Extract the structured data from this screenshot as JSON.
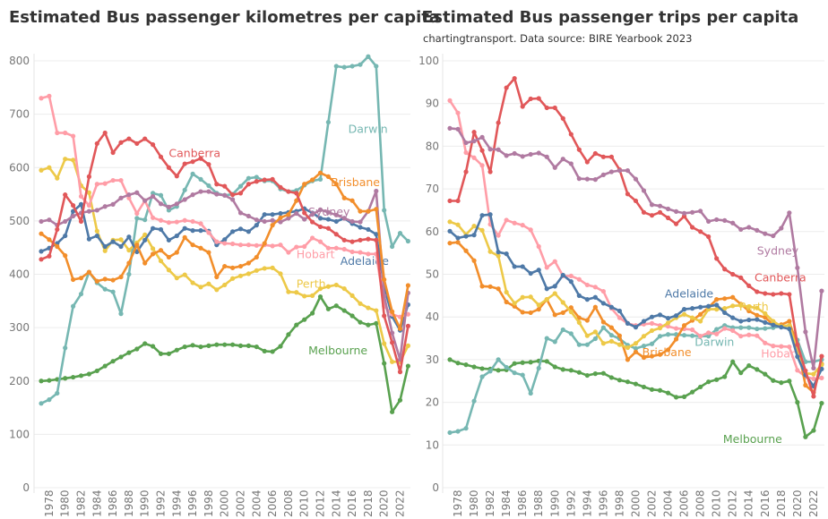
{
  "chart_data": [
    {
      "type": "line",
      "title": "Estimated Bus passenger kilometres per capita",
      "subtitle": "",
      "xlabel": "",
      "ylabel": "",
      "ylim": [
        0,
        800
      ],
      "yticks": [
        0,
        100,
        200,
        300,
        400,
        500,
        600,
        700,
        800
      ],
      "xticks": [
        1978,
        1980,
        1982,
        1984,
        1986,
        1988,
        1990,
        1992,
        1994,
        1996,
        1998,
        2000,
        2002,
        2004,
        2006,
        2008,
        2010,
        2012,
        2014,
        2016,
        2018,
        2020,
        2022
      ],
      "grid": true,
      "legend": "inline labels",
      "x": [
        1977,
        1978,
        1979,
        1980,
        1981,
        1982,
        1983,
        1984,
        1985,
        1986,
        1987,
        1988,
        1989,
        1990,
        1991,
        1992,
        1993,
        1994,
        1995,
        1996,
        1997,
        1998,
        1999,
        2000,
        2001,
        2002,
        2003,
        2004,
        2005,
        2006,
        2007,
        2008,
        2009,
        2010,
        2011,
        2012,
        2013,
        2014,
        2015,
        2016,
        2017,
        2018,
        2019,
        2020,
        2021,
        2022,
        2023
      ],
      "series": [
        {
          "name": "Melbourne",
          "color": "#59a14f",
          "label_at": [
            2010.5,
            250
          ],
          "values": [
            200,
            201,
            203,
            205,
            207,
            210,
            213,
            219,
            228,
            237,
            245,
            253,
            260,
            270,
            265,
            251,
            251,
            258,
            264,
            267,
            264,
            266,
            268,
            268,
            268,
            266,
            266,
            264,
            256,
            255,
            265,
            287,
            305,
            315,
            327,
            358,
            335,
            341,
            332,
            322,
            310,
            305,
            308,
            233,
            142,
            164,
            228
          ]
        },
        {
          "name": "Darwin",
          "color": "#76b7b2",
          "label_at": [
            2015.5,
            665
          ],
          "values": [
            158,
            165,
            177,
            262,
            340,
            363,
            404,
            384,
            372,
            367,
            326,
            400,
            505,
            502,
            552,
            548,
            520,
            527,
            558,
            588,
            578,
            566,
            552,
            548,
            550,
            565,
            580,
            582,
            575,
            575,
            560,
            555,
            557,
            567,
            575,
            578,
            685,
            790,
            788,
            790,
            793,
            808,
            790,
            520,
            452,
            477,
            462
          ]
        },
        {
          "name": "Perth",
          "color": "#edc948",
          "label_at": [
            2009,
            375
          ],
          "values": [
            595,
            600,
            580,
            616,
            614,
            566,
            553,
            481,
            444,
            464,
            465,
            445,
            459,
            474,
            448,
            425,
            408,
            393,
            399,
            384,
            376,
            382,
            371,
            380,
            392,
            397,
            401,
            407,
            411,
            412,
            401,
            367,
            366,
            359,
            360,
            373,
            377,
            380,
            373,
            360,
            345,
            337,
            332,
            270,
            236,
            236,
            266
          ]
        },
        {
          "name": "Adelaide",
          "color": "#4e79a7",
          "label_at": [
            2014.5,
            418
          ],
          "values": [
            443,
            449,
            458,
            472,
            518,
            531,
            466,
            472,
            452,
            461,
            452,
            470,
            442,
            464,
            486,
            484,
            464,
            472,
            486,
            482,
            482,
            481,
            455,
            465,
            480,
            485,
            480,
            492,
            512,
            512,
            514,
            516,
            518,
            523,
            515,
            505,
            503,
            499,
            505,
            495,
            488,
            484,
            475,
            377,
            321,
            295,
            343
          ]
        },
        {
          "name": "Hobart",
          "color": "#ff9da7",
          "label_at": [
            2009,
            430
          ],
          "values": [
            730,
            734,
            665,
            665,
            659,
            546,
            529,
            569,
            570,
            576,
            576,
            543,
            514,
            538,
            506,
            501,
            497,
            498,
            501,
            499,
            495,
            478,
            461,
            458,
            457,
            455,
            455,
            454,
            455,
            453,
            455,
            441,
            451,
            452,
            468,
            461,
            449,
            449,
            447,
            442,
            441,
            438,
            438,
            340,
            325,
            320,
            325
          ]
        },
        {
          "name": "Sydney",
          "color": "#b07aa1",
          "label_at": [
            2010.5,
            510
          ],
          "values": [
            499,
            502,
            492,
            499,
            509,
            515,
            518,
            520,
            527,
            531,
            543,
            549,
            553,
            538,
            546,
            532,
            526,
            532,
            540,
            549,
            555,
            555,
            550,
            548,
            540,
            515,
            509,
            502,
            499,
            501,
            498,
            505,
            514,
            503,
            512,
            521,
            516,
            511,
            505,
            499,
            498,
            518,
            556,
            360,
            290,
            240,
            365
          ]
        },
        {
          "name": "Brisbane",
          "color": "#f28e2b",
          "label_at": [
            2013.3,
            565
          ],
          "values": [
            476,
            465,
            452,
            435,
            390,
            393,
            404,
            387,
            391,
            389,
            395,
            421,
            455,
            421,
            438,
            445,
            432,
            441,
            469,
            455,
            449,
            441,
            395,
            415,
            412,
            415,
            421,
            432,
            458,
            492,
            506,
            512,
            538,
            569,
            577,
            590,
            583,
            569,
            543,
            538,
            518,
            518,
            522,
            390,
            330,
            298,
            379
          ]
        },
        {
          "name": "Canberra",
          "color": "#e15759",
          "label_at": [
            1993,
            620
          ],
          "values": [
            428,
            434,
            484,
            549,
            529,
            499,
            583,
            645,
            665,
            628,
            647,
            654,
            645,
            654,
            643,
            620,
            600,
            584,
            607,
            611,
            617,
            606,
            569,
            565,
            549,
            552,
            569,
            574,
            577,
            578,
            563,
            555,
            552,
            515,
            498,
            489,
            486,
            475,
            464,
            461,
            464,
            466,
            464,
            322,
            272,
            217,
            303
          ]
        }
      ]
    },
    {
      "type": "line",
      "title": "Estimated Bus passenger trips per capita",
      "subtitle": "chartingtransport. Data source: BIRE Yearbook 2023",
      "xlabel": "",
      "ylabel": "",
      "ylim": [
        0,
        100
      ],
      "yticks": [
        0,
        10,
        20,
        30,
        40,
        50,
        60,
        70,
        80,
        90,
        100
      ],
      "xticks": [
        1978,
        1980,
        1982,
        1984,
        1986,
        1988,
        1990,
        1992,
        1994,
        1996,
        1998,
        2000,
        2002,
        2004,
        2006,
        2008,
        2010,
        2012,
        2014,
        2016,
        2018,
        2020,
        2022
      ],
      "grid": true,
      "legend": "inline labels",
      "x": [
        1977,
        1978,
        1979,
        1980,
        1981,
        1982,
        1983,
        1984,
        1985,
        1986,
        1987,
        1988,
        1989,
        1990,
        1991,
        1992,
        1993,
        1994,
        1995,
        1996,
        1997,
        1998,
        1999,
        2000,
        2001,
        2002,
        2003,
        2004,
        2005,
        2006,
        2007,
        2008,
        2009,
        2010,
        2011,
        2012,
        2013,
        2014,
        2015,
        2016,
        2017,
        2018,
        2019,
        2020,
        2021,
        2022,
        2023
      ],
      "series": [
        {
          "name": "Melbourne",
          "color": "#59a14f",
          "label_at": [
            2010.8,
            10.5
          ],
          "values": [
            30,
            29.2,
            28.8,
            28.3,
            27.9,
            27.8,
            27.5,
            27.6,
            29.1,
            29.3,
            29.4,
            29.7,
            29.6,
            28.3,
            27.7,
            27.5,
            27.0,
            26.3,
            26.7,
            26.8,
            25.8,
            25.2,
            24.8,
            24.3,
            23.6,
            23.0,
            22.8,
            22.2,
            21.2,
            21.3,
            22.4,
            23.6,
            24.8,
            25.3,
            26.0,
            29.5,
            26.9,
            28.6,
            27.7,
            26.6,
            25.1,
            24.6,
            25.0,
            20.0,
            11.9,
            13.4,
            19.8
          ]
        },
        {
          "name": "Darwin",
          "color": "#76b7b2",
          "label_at": [
            2007.3,
            33.2
          ],
          "values": [
            12.9,
            13.2,
            13.9,
            20.3,
            26,
            27.3,
            30,
            28.2,
            26.9,
            26.4,
            22.1,
            28,
            35,
            34.2,
            37,
            36.1,
            33.5,
            33.5,
            34.9,
            37.5,
            35.7,
            34.9,
            33.4,
            32.6,
            33.2,
            33.7,
            35.5,
            35.9,
            35.9,
            35.7,
            35.6,
            35.5,
            35.5,
            37.1,
            38,
            37.5,
            37.5,
            37.5,
            37.2,
            37.3,
            37.5,
            37.8,
            38,
            34.6,
            29.5,
            29.5,
            30
          ]
        },
        {
          "name": "Hobart",
          "color": "#ff9da7",
          "label_at": [
            2015.5,
            30.5
          ],
          "values": [
            90.7,
            87.8,
            78.5,
            77.3,
            75.5,
            61.7,
            59.1,
            62.7,
            62,
            61.5,
            60.4,
            56.5,
            51.6,
            53,
            49.6,
            49.6,
            48.8,
            47.5,
            47,
            46,
            42,
            39.8,
            38.5,
            38,
            38.3,
            38.5,
            38,
            37.8,
            37.3,
            37.2,
            37,
            35.5,
            36.3,
            36,
            37.3,
            36.8,
            35.5,
            35.8,
            35.6,
            33.9,
            33.2,
            33.1,
            33,
            27.5,
            26,
            25.5,
            25.7
          ]
        },
        {
          "name": "Brisbane",
          "color": "#f28e2b",
          "label_at": [
            2000.8,
            30.8
          ],
          "values": [
            57.3,
            57.5,
            55.5,
            53.2,
            47.2,
            47.1,
            46.6,
            43.5,
            42.5,
            41.1,
            41,
            41.8,
            44.1,
            40.5,
            41,
            42.2,
            39.8,
            39.2,
            42.3,
            38.8,
            37.5,
            35.6,
            30,
            31.8,
            30.5,
            30.8,
            31.2,
            32.3,
            34.8,
            38,
            39.2,
            40.6,
            42.2,
            44.1,
            44.3,
            44.6,
            43,
            41.4,
            40.4,
            39.9,
            38.2,
            38.2,
            39,
            33,
            24,
            22.3,
            29
          ]
        },
        {
          "name": "Perth",
          "color": "#edc948",
          "label_at": [
            2012.8,
            41.5
          ],
          "values": [
            62.3,
            61.6,
            59.3,
            61.3,
            60.3,
            55.3,
            54.3,
            45.8,
            43.2,
            44.6,
            44.7,
            42.8,
            44.1,
            45.5,
            43.4,
            41.2,
            38.7,
            35.6,
            36.5,
            33.8,
            34.3,
            33.5,
            32.8,
            33.8,
            35.5,
            36.8,
            37.4,
            38.6,
            39.8,
            40.6,
            39.8,
            39,
            41.8,
            41.8,
            42,
            42.6,
            42.7,
            42.4,
            42.1,
            40.8,
            39,
            37.8,
            38,
            32,
            26.8,
            26.6,
            28.8
          ]
        },
        {
          "name": "Adelaide",
          "color": "#4e79a7",
          "label_at": [
            2003.6,
            44.5
          ],
          "values": [
            60.1,
            58.5,
            58.9,
            59.2,
            63.8,
            64,
            55.2,
            54.8,
            51.8,
            51.8,
            50.2,
            51,
            46.6,
            47.2,
            49.8,
            48.3,
            45,
            44.1,
            44.6,
            43.2,
            42.3,
            41.4,
            38.5,
            37.6,
            39,
            40,
            40.5,
            39.7,
            40.3,
            41.8,
            42,
            42.3,
            42.5,
            42.8,
            41,
            39.8,
            39,
            39.3,
            39.4,
            38.7,
            38.1,
            37.6,
            37.2,
            30.7,
            26.4,
            23.8,
            27.8
          ]
        },
        {
          "name": "Canberra",
          "color": "#e15759",
          "label_at": [
            2014.7,
            48.3
          ],
          "values": [
            67.2,
            67.2,
            74,
            83.3,
            79,
            74,
            85.5,
            93.7,
            95.9,
            89.3,
            91.1,
            91.2,
            89,
            89,
            86.5,
            82.8,
            79.2,
            76.3,
            78.3,
            77.5,
            77.5,
            74.5,
            68.8,
            67.2,
            64.5,
            63.8,
            64.5,
            63.2,
            61.8,
            63.6,
            61,
            60,
            58.8,
            53.7,
            51.2,
            50,
            49.2,
            47.3,
            45.9,
            45.5,
            45.3,
            45.5,
            45.3,
            33.5,
            27.4,
            21.4,
            30.8
          ]
        },
        {
          "name": "Sydney",
          "color": "#b07aa1",
          "label_at": [
            2015,
            54.6
          ],
          "values": [
            84.2,
            84,
            80.8,
            81.2,
            82.1,
            79.3,
            79.2,
            77.8,
            78.3,
            77.6,
            78.1,
            78.4,
            77.5,
            75,
            77,
            75.9,
            72.4,
            72.3,
            72.2,
            73.3,
            74,
            74.3,
            74.3,
            72.3,
            69.6,
            66.3,
            66,
            65.3,
            64.7,
            64.3,
            64.5,
            64.8,
            62.4,
            62.8,
            62.6,
            62,
            60.5,
            61,
            60.3,
            59.5,
            59,
            60.8,
            64.4,
            51.5,
            36.5,
            28,
            46.1
          ]
        }
      ]
    }
  ]
}
